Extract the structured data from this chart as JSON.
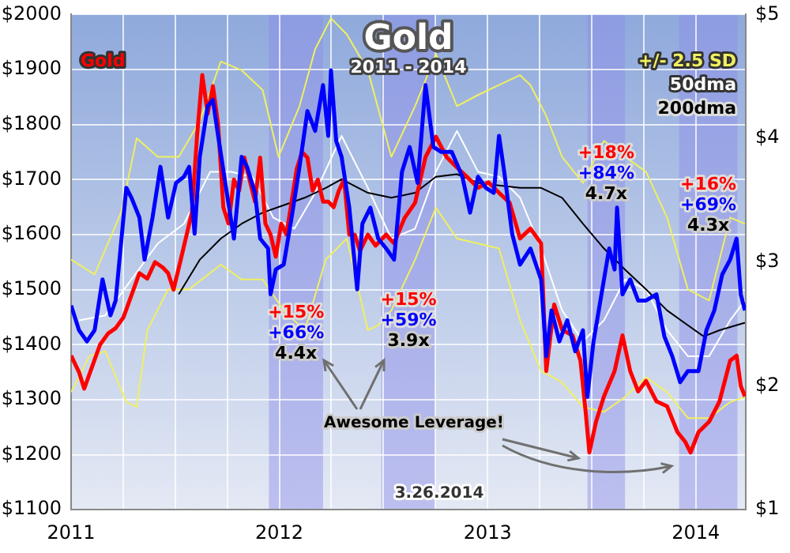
{
  "chart_data": {
    "type": "line",
    "title": "Gold",
    "subtitle": "2011 - 2014",
    "marker": "none",
    "grid": true,
    "legend": "top right",
    "xlim": [
      2011,
      2014.24
    ],
    "xticks": [
      2011,
      {
        "value": 2011.25,
        "label": null
      },
      {
        "value": 2011.5,
        "label": null
      },
      {
        "value": 2011.75,
        "label": null
      },
      2012,
      {
        "value": 2012.25,
        "label": null
      },
      {
        "value": 2012.5,
        "label": null
      },
      {
        "value": 2012.75,
        "label": null
      },
      2013,
      {
        "value": 2013.25,
        "label": null
      },
      {
        "value": 2013.5,
        "label": null
      },
      {
        "value": 2013.75,
        "label": null
      },
      2014
    ],
    "ylim": [
      1100,
      2000
    ],
    "yticks": [
      {
        "value": 1100,
        "label": "$1100"
      },
      {
        "value": 1200,
        "label": "$1200"
      },
      {
        "value": 1300,
        "label": "$1300"
      },
      {
        "value": 1400,
        "label": "$1400"
      },
      {
        "value": 1500,
        "label": "$1500"
      },
      {
        "value": 1600,
        "label": "$1600"
      },
      {
        "value": 1700,
        "label": "$1700"
      },
      {
        "value": 1800,
        "label": "$1800"
      },
      {
        "value": 1900,
        "label": "$1900"
      },
      {
        "value": 2000,
        "label": "$2000"
      }
    ],
    "y2lim": [
      1,
      5
    ],
    "y2ticks": [
      {
        "value": 1,
        "label": "$1"
      },
      {
        "value": 2,
        "label": "$2"
      },
      {
        "value": 3,
        "label": "$3"
      },
      {
        "value": 4,
        "label": "$4"
      },
      {
        "value": 5,
        "label": "$5"
      }
    ],
    "bands": [
      {
        "axis": "x",
        "from": 2011.95,
        "to": 2012.21,
        "color": "#8c8ce8"
      },
      {
        "axis": "x",
        "from": 2012.49,
        "to": 2012.75,
        "color": "#8c8ce8"
      },
      {
        "axis": "x",
        "from": 2013.48,
        "to": 2013.66,
        "color": "#8c8ce8"
      },
      {
        "axis": "x",
        "from": 2013.92,
        "to": 2014.2,
        "color": "#8c8ce8"
      }
    ],
    "series": [
      {
        "name": "+/- 2.5 SD",
        "color": "#f0f060",
        "axis": "y2",
        "x": [
          2011,
          2011.113,
          2011.24,
          2011.315,
          2011.416,
          2011.517,
          2011.618,
          2011.719,
          2011.819,
          2011.92,
          2011.996,
          2012.097,
          2012.172,
          2012.248,
          2012.324,
          2012.425,
          2012.538,
          2012.652,
          2012.752,
          2012.853,
          2012.954,
          2013.055,
          2013.156,
          2013.206,
          2013.282,
          2013.358,
          2013.458,
          2013.559,
          2013.66,
          2013.761,
          2013.862,
          2013.962,
          2014.064,
          2014.165,
          2014.236
        ],
        "values": [
          3.02,
          2.9,
          3.4,
          4.0,
          3.85,
          3.85,
          4.14,
          4.62,
          4.55,
          4.39,
          3.85,
          4.26,
          4.72,
          4.97,
          4.84,
          4.55,
          3.85,
          4.26,
          4.68,
          4.26,
          4.35,
          4.43,
          4.51,
          4.43,
          4.18,
          3.85,
          3.64,
          3.98,
          3.85,
          3.73,
          3.36,
          2.78,
          2.69,
          3.36,
          3.31
        ]
      },
      {
        "color": "#f0f060",
        "axis": "y2",
        "x": [
          2011,
          2011.088,
          2011.164,
          2011.265,
          2011.315,
          2011.366,
          2011.466,
          2011.567,
          2011.719,
          2011.819,
          2011.92,
          2012.021,
          2012.122,
          2012.223,
          2012.324,
          2012.425,
          2012.475,
          2012.538,
          2012.652,
          2012.752,
          2012.853,
          2012.954,
          2013.055,
          2013.156,
          2013.257,
          2013.358,
          2013.458,
          2013.559,
          2013.66,
          2013.761,
          2013.862,
          2013.962,
          2014.064,
          2014.165,
          2014.236
        ],
        "values": [
          1.95,
          2.24,
          2.28,
          1.87,
          1.83,
          2.45,
          2.78,
          2.78,
          2.98,
          2.86,
          2.86,
          2.61,
          2.45,
          3.02,
          3.19,
          2.45,
          2.49,
          2.61,
          3.02,
          3.44,
          3.19,
          3.15,
          3.11,
          2.53,
          2.12,
          2.03,
          1.83,
          1.79,
          1.91,
          2.07,
          1.95,
          1.74,
          1.74,
          1.87,
          1.91
        ]
      },
      {
        "name": "50dma",
        "color": "#ffffff",
        "axis": "y2",
        "x": [
          2011.038,
          2011.164,
          2011.29,
          2011.416,
          2011.542,
          2011.668,
          2011.769,
          2011.87,
          2011.971,
          2012.072,
          2012.172,
          2012.299,
          2012.425,
          2012.538,
          2012.652,
          2012.752,
          2012.853,
          2012.954,
          2013.055,
          2013.156,
          2013.257,
          2013.358,
          2013.458,
          2013.559,
          2013.66,
          2013.761,
          2013.862,
          2013.962,
          2014.064,
          2014.165,
          2014.236
        ],
        "values": [
          2.53,
          2.57,
          2.86,
          3.15,
          3.31,
          3.73,
          3.73,
          3.69,
          3.36,
          3.27,
          3.56,
          4.02,
          3.6,
          3.19,
          3.27,
          3.73,
          4.06,
          3.73,
          3.69,
          3.52,
          3.11,
          2.61,
          2.36,
          2.53,
          2.86,
          2.78,
          2.45,
          2.24,
          2.24,
          2.53,
          2.69
        ]
      },
      {
        "name": "200dma",
        "color": "#000000",
        "axis": "y2",
        "x": [
          2011.517,
          2011.618,
          2011.719,
          2011.819,
          2011.92,
          2012.021,
          2012.122,
          2012.223,
          2012.299,
          2012.425,
          2012.538,
          2012.652,
          2012.752,
          2012.853,
          2012.954,
          2013.055,
          2013.156,
          2013.257,
          2013.358,
          2013.458,
          2013.559,
          2013.66,
          2013.761,
          2013.862,
          2013.962,
          2014.038,
          2014.114,
          2014.236
        ],
        "values": [
          2.74,
          3.02,
          3.19,
          3.31,
          3.4,
          3.46,
          3.52,
          3.6,
          3.67,
          3.56,
          3.52,
          3.56,
          3.69,
          3.71,
          3.64,
          3.62,
          3.6,
          3.6,
          3.52,
          3.31,
          3.11,
          2.94,
          2.78,
          2.61,
          2.49,
          2.4,
          2.45,
          2.51
        ]
      },
      {
        "name": "Gold",
        "color": "#ff0000",
        "x": [
          2011,
          2011.038,
          2011.063,
          2011.101,
          2011.139,
          2011.177,
          2011.214,
          2011.252,
          2011.29,
          2011.328,
          2011.366,
          2011.403,
          2011.441,
          2011.466,
          2011.492,
          2011.53,
          2011.555,
          2011.58,
          2011.605,
          2011.63,
          2011.656,
          2011.681,
          2011.706,
          2011.731,
          2011.756,
          2011.782,
          2011.807,
          2011.832,
          2011.857,
          2011.883,
          2011.908,
          2011.933,
          2011.958,
          2011.983,
          2012.009,
          2012.034,
          2012.059,
          2012.084,
          2012.109,
          2012.135,
          2012.16,
          2012.185,
          2012.21,
          2012.235,
          2012.261,
          2012.286,
          2012.311,
          2012.336,
          2012.362,
          2012.387,
          2012.425,
          2012.462,
          2012.513,
          2012.551,
          2012.601,
          2012.652,
          2012.702,
          2012.752,
          2012.803,
          2012.853,
          2012.904,
          2012.954,
          2013.004,
          2013.055,
          2013.106,
          2013.156,
          2013.206,
          2013.257,
          2013.282,
          2013.32,
          2013.358,
          2013.408,
          2013.446,
          2013.471,
          2013.489,
          2013.521,
          2013.559,
          2013.61,
          2013.648,
          2013.685,
          2013.723,
          2013.761,
          2013.811,
          2013.862,
          2013.912,
          2013.95,
          2013.975,
          2014.013,
          2014.064,
          2014.114,
          2014.165,
          2014.196,
          2014.216,
          2014.236
        ],
        "values": [
          1380,
          1350,
          1320,
          1360,
          1400,
          1420,
          1430,
          1450,
          1490,
          1530,
          1520,
          1550,
          1540,
          1530,
          1500,
          1560,
          1600,
          1640,
          1780,
          1890,
          1820,
          1870,
          1800,
          1650,
          1620,
          1700,
          1680,
          1740,
          1700,
          1660,
          1740,
          1620,
          1600,
          1560,
          1620,
          1600,
          1660,
          1720,
          1750,
          1740,
          1680,
          1700,
          1660,
          1660,
          1650,
          1680,
          1700,
          1600,
          1600,
          1570,
          1600,
          1580,
          1600,
          1584,
          1630,
          1658,
          1741,
          1778,
          1741,
          1722,
          1704,
          1685,
          1695,
          1676,
          1658,
          1593,
          1611,
          1584,
          1352,
          1473,
          1427,
          1417,
          1371,
          1278,
          1204,
          1260,
          1306,
          1352,
          1417,
          1352,
          1315,
          1334,
          1297,
          1288,
          1241,
          1223,
          1204,
          1241,
          1260,
          1297,
          1371,
          1380,
          1325,
          1306
        ]
      },
      {
        "color": "#0000ff",
        "axis": "y2",
        "x": [
          2011,
          2011.038,
          2011.076,
          2011.113,
          2011.151,
          2011.189,
          2011.214,
          2011.265,
          2011.29,
          2011.328,
          2011.353,
          2011.391,
          2011.429,
          2011.466,
          2011.504,
          2011.542,
          2011.567,
          2011.593,
          2011.618,
          2011.656,
          2011.681,
          2011.706,
          2011.744,
          2011.782,
          2011.819,
          2011.845,
          2011.883,
          2011.908,
          2011.946,
          2011.958,
          2011.983,
          2012.021,
          2012.059,
          2012.097,
          2012.135,
          2012.172,
          2012.21,
          2012.235,
          2012.248,
          2012.273,
          2012.299,
          2012.336,
          2012.374,
          2012.399,
          2012.437,
          2012.475,
          2012.513,
          2012.551,
          2012.589,
          2012.626,
          2012.664,
          2012.702,
          2012.74,
          2012.778,
          2012.828,
          2012.879,
          2012.916,
          2012.954,
          2012.992,
          2013.03,
          2013.055,
          2013.08,
          2013.118,
          2013.156,
          2013.206,
          2013.257,
          2013.282,
          2013.307,
          2013.345,
          2013.383,
          2013.421,
          2013.458,
          2013.479,
          2013.509,
          2013.547,
          2013.584,
          2013.61,
          2013.622,
          2013.648,
          2013.685,
          2013.723,
          2013.761,
          2013.811,
          2013.849,
          2013.887,
          2013.925,
          2013.962,
          2014.013,
          2014.051,
          2014.089,
          2014.127,
          2014.165,
          2014.196,
          2014.216,
          2014.236
        ],
        "values": [
          2.65,
          2.45,
          2.36,
          2.45,
          2.86,
          2.57,
          2.69,
          3.6,
          3.52,
          3.36,
          3.02,
          3.36,
          3.77,
          3.36,
          3.64,
          3.69,
          3.77,
          3.23,
          3.85,
          4.26,
          4.31,
          4.02,
          3.6,
          3.19,
          3.85,
          3.77,
          3.56,
          3.19,
          3.11,
          2.74,
          2.94,
          2.98,
          3.36,
          3.77,
          4.22,
          4.06,
          4.43,
          4.02,
          4.55,
          3.98,
          3.85,
          3.44,
          2.78,
          3.31,
          3.44,
          3.19,
          3.11,
          3.02,
          3.73,
          3.93,
          3.64,
          4.43,
          3.93,
          3.89,
          3.89,
          3.69,
          3.4,
          3.69,
          3.6,
          3.56,
          4.02,
          3.73,
          3.23,
          2.98,
          3.11,
          2.86,
          2.24,
          2.61,
          2.36,
          2.53,
          2.28,
          2.45,
          1.91,
          2.36,
          2.74,
          3.11,
          2.94,
          3.44,
          2.74,
          2.86,
          2.69,
          2.69,
          2.74,
          2.4,
          2.24,
          2.03,
          2.12,
          2.12,
          2.45,
          2.61,
          2.9,
          3.02,
          3.19,
          2.74,
          2.61
        ]
      }
    ],
    "annotations": [
      "+15%",
      "+66%",
      "4.4x",
      "+15%",
      "+59%",
      "3.9x",
      "+18%",
      "+84%",
      "4.7x",
      "+16%",
      "+69%",
      "4.3x",
      "Awesome Leverage!",
      "3.26.2014"
    ]
  }
}
